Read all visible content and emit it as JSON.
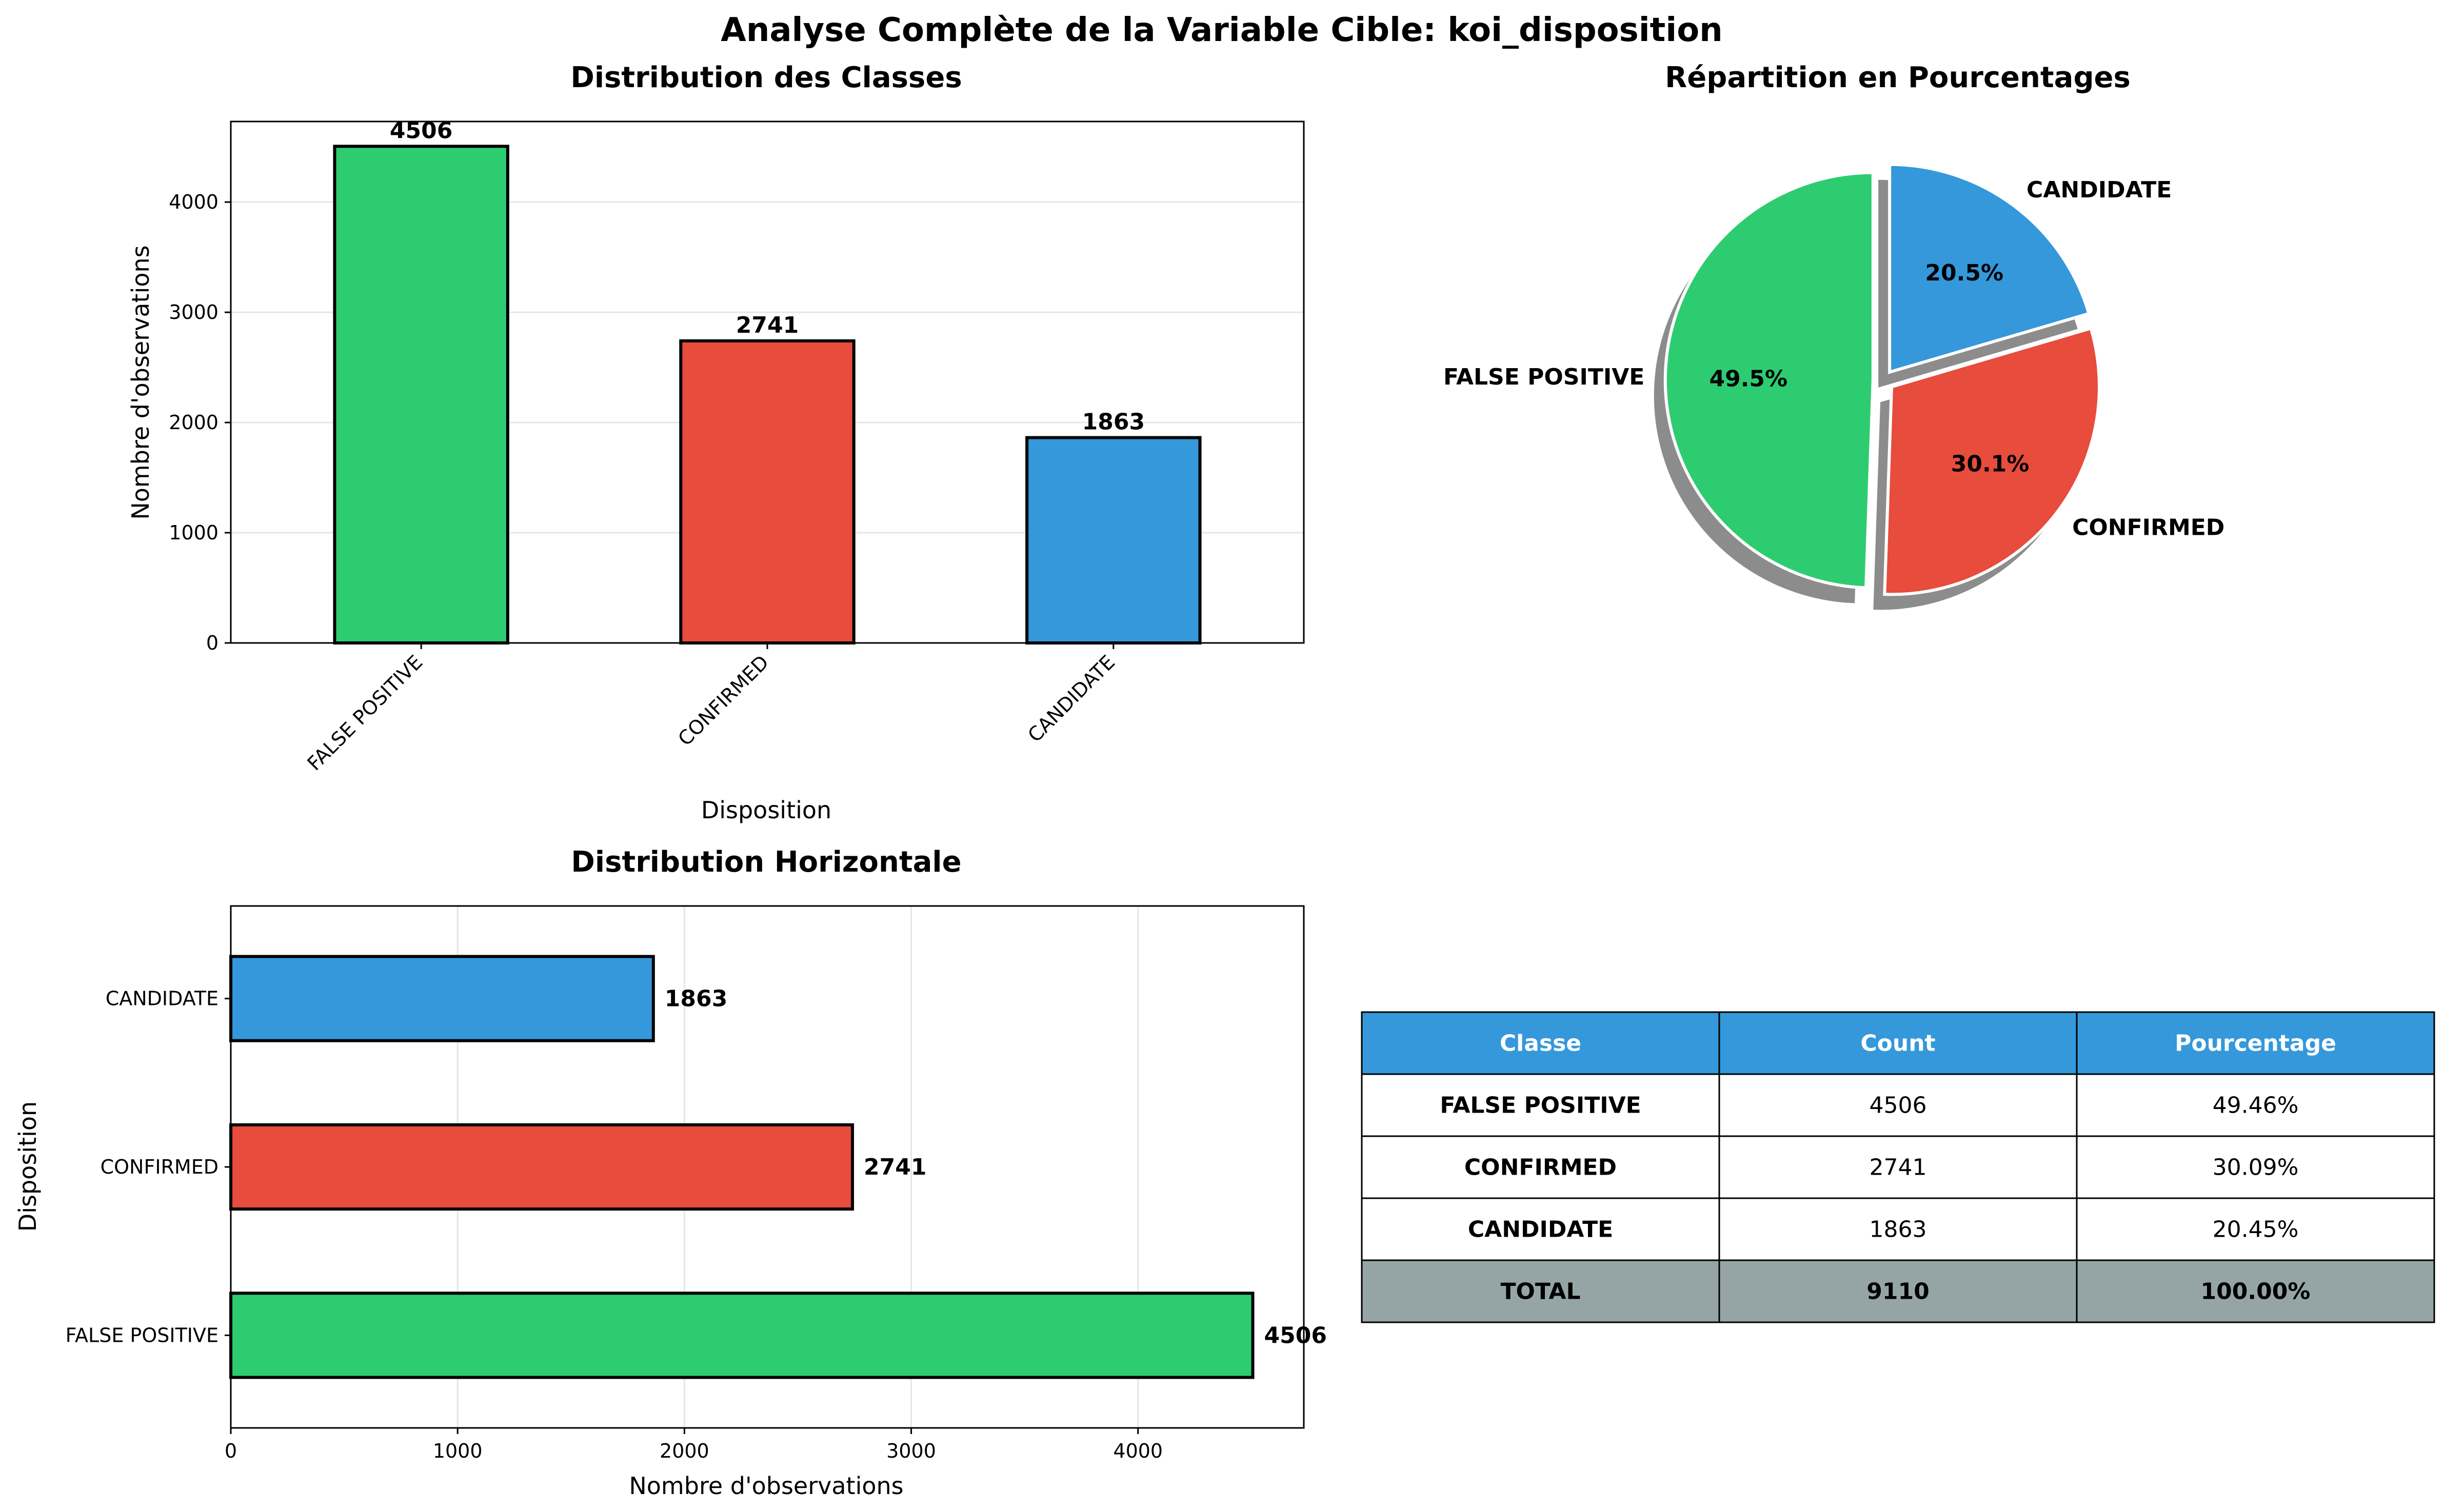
{
  "figure": {
    "suptitle": "Analyse Complète de la Variable Cible: koi_disposition"
  },
  "colors": {
    "FALSE POSITIVE": "#2ecc71",
    "CONFIRMED": "#e74c3c",
    "CANDIDATE": "#3498db",
    "table_header": "#3498db",
    "table_total": "#95a5a6",
    "pie_shadow": "#8c9a8c"
  },
  "chart_data": [
    {
      "type": "bar",
      "title": "Distribution des Classes",
      "xlabel": "Disposition",
      "ylabel": "Nombre d'observations",
      "categories": [
        "FALSE POSITIVE",
        "CONFIRMED",
        "CANDIDATE"
      ],
      "values": [
        4506,
        2741,
        1863
      ],
      "data_labels": [
        "4506",
        "2741",
        "1863"
      ],
      "ylim": [
        0,
        4731
      ],
      "yticks": [
        0,
        1000,
        2000,
        3000,
        4000
      ],
      "grid": "y",
      "legend": "none"
    },
    {
      "type": "pie",
      "title": "Répartition en Pourcentages",
      "labels": [
        "FALSE POSITIVE",
        "CONFIRMED",
        "CANDIDATE"
      ],
      "values": [
        4506,
        2741,
        1863
      ],
      "pct_labels": [
        "49.5%",
        "30.1%",
        "20.5%"
      ],
      "explode": [
        0.05,
        0.05,
        0.05
      ],
      "startangle": 90,
      "shadow": true
    },
    {
      "type": "bar",
      "orientation": "horizontal",
      "title": "Distribution Horizontale",
      "xlabel": "Nombre d'observations",
      "ylabel": "Disposition",
      "categories": [
        "FALSE POSITIVE",
        "CONFIRMED",
        "CANDIDATE"
      ],
      "values": [
        4506,
        2741,
        1863
      ],
      "data_labels": [
        "4506",
        "2741",
        "1863"
      ],
      "xlim": [
        0,
        4731
      ],
      "xticks": [
        0,
        1000,
        2000,
        3000,
        4000
      ],
      "grid": "x",
      "legend": "none"
    },
    {
      "type": "table",
      "columns": [
        "Classe",
        "Count",
        "Pourcentage"
      ],
      "rows": [
        [
          "FALSE POSITIVE",
          "4506",
          "49.46%"
        ],
        [
          "CONFIRMED",
          "2741",
          "30.09%"
        ],
        [
          "CANDIDATE",
          "1863",
          "20.45%"
        ],
        [
          "TOTAL",
          "9110",
          "100.00%"
        ]
      ]
    }
  ]
}
